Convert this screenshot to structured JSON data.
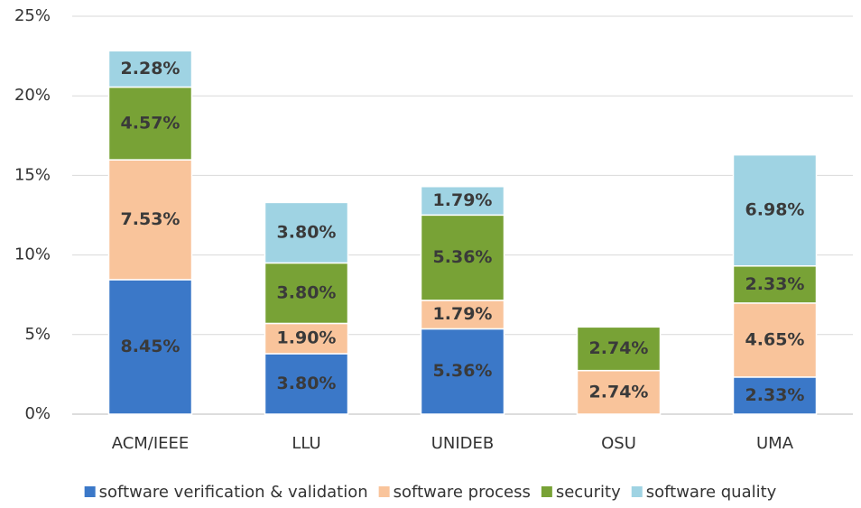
{
  "chart_data": {
    "type": "bar",
    "stacked": true,
    "categories": [
      "ACM/IEEE",
      "LLU",
      "UNIDEB",
      "OSU",
      "UMA"
    ],
    "series": [
      {
        "name": "software verification & validation",
        "color": "#3b78c8",
        "values": [
          8.45,
          3.8,
          5.36,
          null,
          2.33
        ],
        "value_labels": [
          "8.45%",
          "3.80%",
          "5.36%",
          null,
          "2.33%"
        ]
      },
      {
        "name": "software process",
        "color": "#f9c49b",
        "values": [
          7.53,
          1.9,
          1.79,
          2.74,
          4.65
        ],
        "value_labels": [
          "7.53%",
          "1.90%",
          "1.79%",
          "2.74%",
          "4.65%"
        ]
      },
      {
        "name": "security",
        "color": "#78a236",
        "values": [
          4.57,
          3.8,
          5.36,
          2.74,
          2.33
        ],
        "value_labels": [
          "4.57%",
          "3.80%",
          "5.36%",
          "2.74%",
          "2.33%"
        ]
      },
      {
        "name": "software quality",
        "color": "#9fd3e3",
        "values": [
          2.28,
          3.8,
          1.79,
          null,
          6.98
        ],
        "value_labels": [
          "2.28%",
          "3.80%",
          "1.79%",
          null,
          "6.98%"
        ]
      }
    ],
    "ylim": [
      0,
      25
    ],
    "yticks": [
      {
        "value": 0,
        "label": "0%"
      },
      {
        "value": 5,
        "label": "5%"
      },
      {
        "value": 10,
        "label": "10%"
      },
      {
        "value": 15,
        "label": "15%"
      },
      {
        "value": 20,
        "label": "20%"
      },
      {
        "value": 25,
        "label": "25%"
      }
    ],
    "grid": true,
    "legend": "bottom"
  }
}
